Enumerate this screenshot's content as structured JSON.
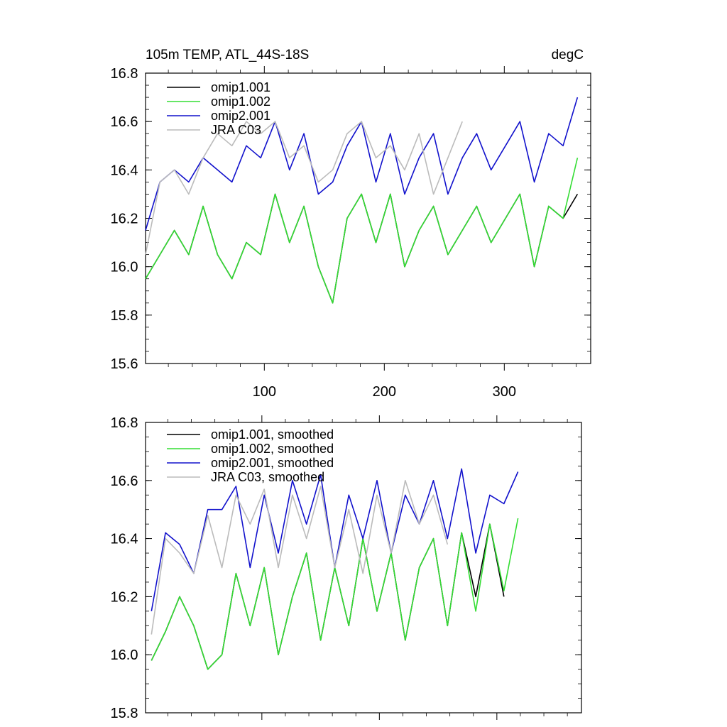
{
  "chart_data": [
    {
      "type": "line",
      "title": "105m TEMP, ATL_44S-18S",
      "units": "degC",
      "xlim": [
        1,
        372
      ],
      "ylim": [
        15.6,
        16.8
      ],
      "x_ticks": [
        100,
        200,
        300
      ],
      "y_ticks": [
        15.6,
        15.8,
        16.0,
        16.2,
        16.4,
        16.6,
        16.8
      ],
      "y_tick_labels": [
        "15.6",
        "15.8",
        "16.0",
        "16.2",
        "16.4",
        "16.6",
        "16.8"
      ],
      "x_tick_labels": [
        "100",
        "200",
        "300"
      ],
      "legend": [
        "omip1.001",
        "omip1.002",
        "omip2.001",
        "JRA C03"
      ],
      "series": [
        {
          "name": "omip1.001",
          "color": "#000000",
          "x_start": 1,
          "x_step": 12,
          "values": [
            15.95,
            16.05,
            16.15,
            16.05,
            16.25,
            16.05,
            15.95,
            16.1,
            16.05,
            16.3,
            16.1,
            16.25,
            16.0,
            15.85,
            16.2,
            16.3,
            16.1,
            16.3,
            16.0,
            16.15,
            16.25,
            16.05,
            16.15,
            16.25,
            16.1,
            16.2,
            16.3,
            16.0,
            16.25,
            16.2,
            16.3
          ]
        },
        {
          "name": "omip1.002",
          "color": "#33dd33",
          "x_start": 1,
          "x_step": 12,
          "values": [
            15.95,
            16.05,
            16.15,
            16.05,
            16.25,
            16.05,
            15.95,
            16.1,
            16.05,
            16.3,
            16.1,
            16.25,
            16.0,
            15.85,
            16.2,
            16.3,
            16.1,
            16.3,
            16.0,
            16.15,
            16.25,
            16.05,
            16.15,
            16.25,
            16.1,
            16.2,
            16.3,
            16.0,
            16.25,
            16.2,
            16.45
          ]
        },
        {
          "name": "omip2.001",
          "color": "#1111cc",
          "x_start": 1,
          "x_step": 12,
          "values": [
            16.15,
            16.35,
            16.4,
            16.35,
            16.45,
            16.4,
            16.35,
            16.5,
            16.45,
            16.6,
            16.4,
            16.55,
            16.3,
            16.35,
            16.5,
            16.6,
            16.35,
            16.55,
            16.3,
            16.45,
            16.55,
            16.3,
            16.45,
            16.55,
            16.4,
            16.5,
            16.6,
            16.35,
            16.55,
            16.5,
            16.7
          ]
        },
        {
          "name": "JRA C03",
          "color": "#bbbbbb",
          "x_start": 1,
          "x_step": 12,
          "values": [
            16.05,
            16.35,
            16.4,
            16.3,
            16.45,
            16.55,
            16.5,
            16.6,
            16.55,
            16.6,
            16.45,
            16.5,
            16.35,
            16.4,
            16.55,
            16.6,
            16.45,
            16.5,
            16.4,
            16.55,
            16.3,
            16.45,
            16.6
          ]
        }
      ]
    },
    {
      "type": "line",
      "title": "",
      "xlim": [
        1,
        372
      ],
      "ylim": [
        15.8,
        16.8
      ],
      "x_ticks": [
        100,
        200,
        300
      ],
      "y_ticks": [
        15.8,
        16.0,
        16.2,
        16.4,
        16.6,
        16.8
      ],
      "y_tick_labels": [
        "15.8",
        "16.0",
        "16.2",
        "16.4",
        "16.6",
        "16.8"
      ],
      "legend": [
        "omip1.001, smoothed",
        "omip1.002, smoothed",
        "omip2.001, smoothed",
        "JRA C03, smoothed"
      ],
      "series": [
        {
          "name": "omip1.001, smoothed",
          "color": "#000000",
          "x_start": 6,
          "x_step": 12,
          "values": [
            15.98,
            16.08,
            16.2,
            16.1,
            15.95,
            16.0,
            16.28,
            16.1,
            16.3,
            16.0,
            16.2,
            16.35,
            16.05,
            16.3,
            16.1,
            16.4,
            16.15,
            16.35,
            16.05,
            16.3,
            16.4,
            16.1,
            16.42,
            16.2,
            16.45,
            16.2
          ]
        },
        {
          "name": "omip1.002, smoothed",
          "color": "#33dd33",
          "x_start": 6,
          "x_step": 12,
          "values": [
            15.98,
            16.08,
            16.2,
            16.1,
            15.95,
            16.0,
            16.28,
            16.1,
            16.3,
            16.0,
            16.2,
            16.35,
            16.05,
            16.3,
            16.1,
            16.4,
            16.15,
            16.35,
            16.05,
            16.3,
            16.4,
            16.1,
            16.42,
            16.15,
            16.45,
            16.22,
            16.47
          ]
        },
        {
          "name": "omip2.001, smoothed",
          "color": "#1111cc",
          "x_start": 6,
          "x_step": 12,
          "values": [
            16.15,
            16.42,
            16.38,
            16.28,
            16.5,
            16.5,
            16.58,
            16.3,
            16.55,
            16.35,
            16.6,
            16.45,
            16.62,
            16.3,
            16.55,
            16.4,
            16.6,
            16.35,
            16.55,
            16.45,
            16.6,
            16.4,
            16.64,
            16.35,
            16.55,
            16.52,
            16.63
          ]
        },
        {
          "name": "JRA C03, smoothed",
          "color": "#bbbbbb",
          "x_start": 6,
          "x_step": 12,
          "values": [
            16.07,
            16.4,
            16.35,
            16.28,
            16.48,
            16.3,
            16.55,
            16.45,
            16.57,
            16.3,
            16.55,
            16.4,
            16.58,
            16.3,
            16.5,
            16.28,
            16.55,
            16.35,
            16.6,
            16.45,
            16.55,
            16.38
          ]
        }
      ]
    }
  ]
}
